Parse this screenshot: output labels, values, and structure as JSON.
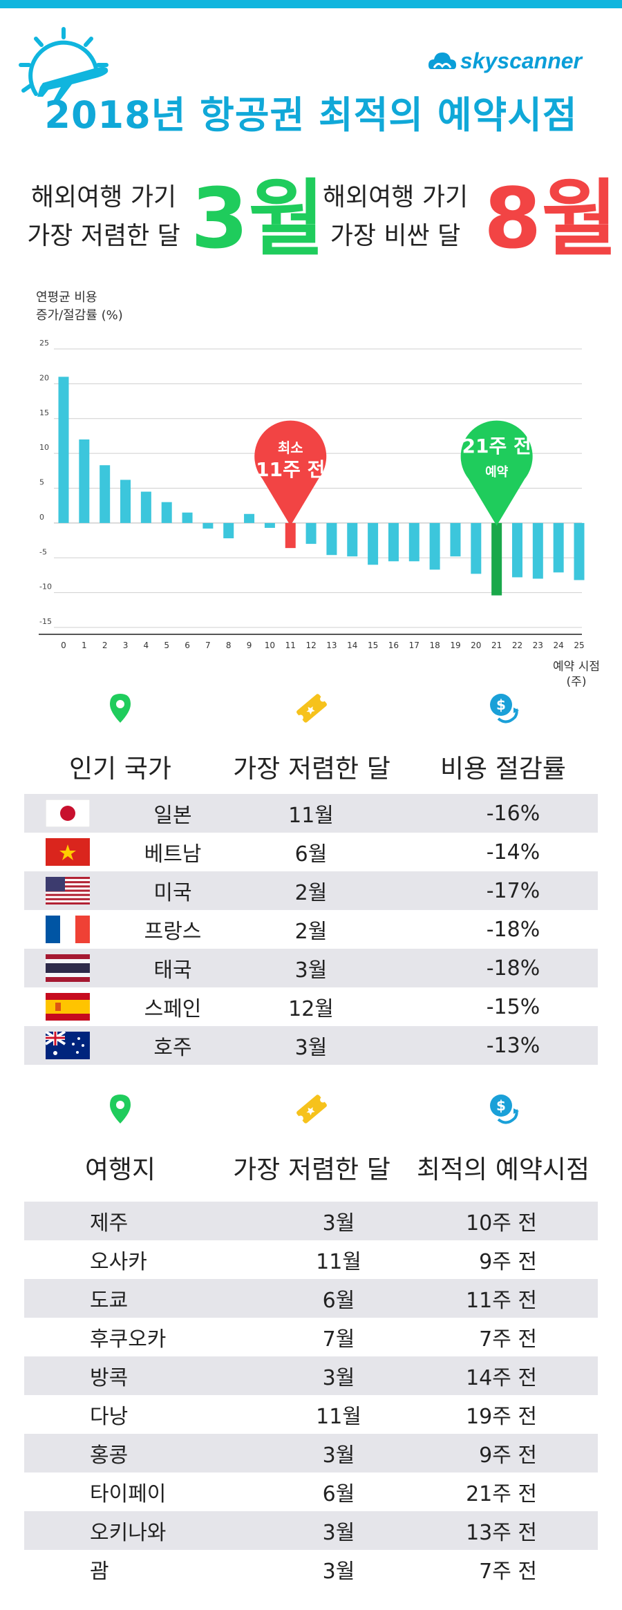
{
  "brand": "skyscanner",
  "title": "2018년 항공권 최적의 예약시점",
  "summary": {
    "cheap_line1": "해외여행 가기",
    "cheap_line2": "가장 저렴한 달",
    "cheap_month": "3월",
    "exp_line1": "해외여행 가기",
    "exp_line2": "가장 비싼 달",
    "exp_month": "8월"
  },
  "colors": {
    "accent": "#10b5de",
    "bar": "#3cc6dc",
    "low": "#f24444",
    "best": "#1fcc5c",
    "dark_green": "#1aa84a"
  },
  "chart_data": {
    "type": "bar",
    "ylabel_line1": "연평균 비용",
    "ylabel_line2": "증가/절감률 (%)",
    "xlabel_line1": "예약 시점",
    "xlabel_line2": "(주)",
    "ylim": [
      -15,
      25
    ],
    "yticks": [
      25,
      20,
      15,
      10,
      5,
      0,
      -5,
      -10,
      -15
    ],
    "categories": [
      "0",
      "1",
      "2",
      "3",
      "4",
      "5",
      "6",
      "7",
      "8",
      "9",
      "10",
      "11",
      "12",
      "13",
      "14",
      "15",
      "16",
      "17",
      "18",
      "19",
      "20",
      "21",
      "22",
      "23",
      "24",
      "25"
    ],
    "values": [
      21,
      12,
      8.3,
      6.2,
      4.5,
      3,
      1.5,
      -0.8,
      -2.2,
      1.3,
      -0.7,
      -3.6,
      -3,
      -4.6,
      -4.8,
      -6,
      -5.5,
      -5.5,
      -6.7,
      -4.8,
      -7.3,
      -10.4,
      -7.8,
      -8,
      -7.1,
      -8.2
    ],
    "highlight_low_index": 11,
    "highlight_best_index": 21,
    "annotations": {
      "low_line1": "최소",
      "low_line2": "11주 전",
      "best_line1": "21주 전",
      "best_line2": "예약"
    }
  },
  "countries_table": {
    "headers": [
      "인기 국가",
      "가장 저렴한 달",
      "비용 절감률"
    ],
    "header_icons": [
      "location-pin-icon",
      "ticket-icon",
      "money-savings-icon"
    ],
    "rows": [
      {
        "flag": "japan",
        "name": "일본",
        "month": "11월",
        "savings": "-16%"
      },
      {
        "flag": "vietnam",
        "name": "베트남",
        "month": "6월",
        "savings": "-14%"
      },
      {
        "flag": "usa",
        "name": "미국",
        "month": "2월",
        "savings": "-17%"
      },
      {
        "flag": "france",
        "name": "프랑스",
        "month": "2월",
        "savings": "-18%"
      },
      {
        "flag": "thailand",
        "name": "태국",
        "month": "3월",
        "savings": "-18%"
      },
      {
        "flag": "spain",
        "name": "스페인",
        "month": "12월",
        "savings": "-15%"
      },
      {
        "flag": "australia",
        "name": "호주",
        "month": "3월",
        "savings": "-13%"
      }
    ]
  },
  "destinations_table": {
    "headers": [
      "여행지",
      "가장 저렴한 달",
      "최적의 예약시점"
    ],
    "header_icons": [
      "location-pin-icon",
      "ticket-icon",
      "money-savings-icon"
    ],
    "rows": [
      {
        "name": "제주",
        "month": "3월",
        "timing": "10주 전"
      },
      {
        "name": "오사카",
        "month": "11월",
        "timing": "9주 전"
      },
      {
        "name": "도쿄",
        "month": "6월",
        "timing": "11주 전"
      },
      {
        "name": "후쿠오카",
        "month": "7월",
        "timing": "7주 전"
      },
      {
        "name": "방콕",
        "month": "3월",
        "timing": "14주 전"
      },
      {
        "name": "다낭",
        "month": "11월",
        "timing": "19주 전"
      },
      {
        "name": "홍콩",
        "month": "3월",
        "timing": "9주 전"
      },
      {
        "name": "타이페이",
        "month": "6월",
        "timing": "21주 전"
      },
      {
        "name": "오키나와",
        "month": "3월",
        "timing": "13주 전"
      },
      {
        "name": "괌",
        "month": "3월",
        "timing": "7주 전"
      }
    ]
  }
}
